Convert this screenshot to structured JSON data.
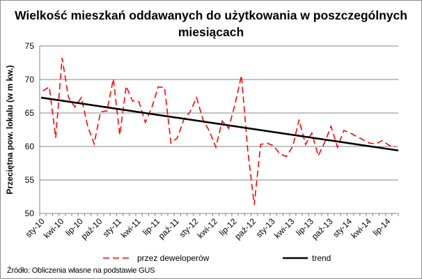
{
  "chart_data": {
    "type": "line",
    "title_lines": [
      "Wielkość mieszkań oddawanych do użytkowania  w poszczególnych",
      "miesiącach"
    ],
    "xlabel": "",
    "ylabel": "Przeciętna pow. lokalu (w m kw.)",
    "ylim": [
      50,
      75
    ],
    "yticks": [
      50,
      55,
      60,
      65,
      70,
      75
    ],
    "grid": true,
    "legend": "bottom",
    "xtick_labels": [
      "sty-10",
      "kwi-10",
      "lip-10",
      "paź-10",
      "sty-11",
      "kwi-11",
      "lip-11",
      "paź-11",
      "sty-12",
      "kwi-12",
      "lip-12",
      "paź-12",
      "sty-13",
      "kwi-13",
      "lip-13",
      "paź-13",
      "sty-14",
      "kwi-14",
      "lip-14"
    ],
    "series": [
      {
        "name": "przez deweloperów",
        "color": "#ff0000",
        "style": "dashed",
        "values": [
          68.3,
          68.9,
          61.3,
          73.2,
          67.3,
          65.9,
          67.3,
          63.0,
          60.4,
          65.2,
          65.3,
          70.1,
          61.7,
          69.0,
          66.8,
          66.7,
          63.6,
          65.8,
          68.9,
          68.8,
          60.5,
          61.3,
          64.0,
          65.2,
          67.3,
          64.0,
          62.3,
          59.9,
          63.8,
          62.7,
          66.3,
          70.6,
          59.3,
          51.3,
          60.3,
          60.5,
          60.1,
          58.9,
          58.5,
          60.0,
          64.0,
          60.3,
          62.0,
          58.6,
          60.6,
          63.0,
          59.9,
          62.4,
          62.0,
          61.5,
          61.0,
          60.5,
          60.4,
          60.9,
          60.2,
          60.0
        ]
      },
      {
        "name": "trend",
        "color": "#000000",
        "style": "solid",
        "start": 67.3,
        "end": 59.4
      }
    ]
  },
  "source": "Źródło: Obliczenia własne na podstawie GUS"
}
